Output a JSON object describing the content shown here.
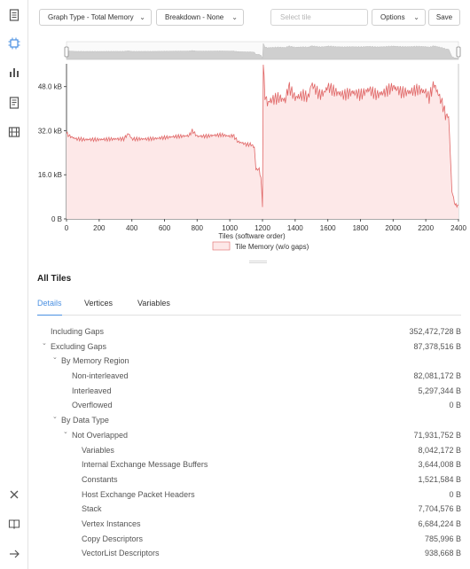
{
  "sidebar": {
    "icons": [
      "document-icon",
      "chip-icon",
      "bar-chart-icon",
      "list-document-icon",
      "film-icon",
      "close-icon",
      "book-icon",
      "arrow-right-icon"
    ]
  },
  "toolbar": {
    "graph_type_label": "Graph Type - Total Memory",
    "breakdown_label": "Breakdown - None",
    "search_placeholder": "Select tile",
    "options_label": "Options",
    "save_label": "Save"
  },
  "chart_data": {
    "type": "area",
    "title": "",
    "xlabel": "Tiles  (software order)",
    "ylabel": "",
    "xlim": [
      0,
      2400
    ],
    "ylim": [
      0,
      54
    ],
    "x_ticks": [
      "0",
      "200",
      "400",
      "600",
      "800",
      "1000",
      "1200",
      "1400",
      "1600",
      "1800",
      "2000",
      "2200",
      "2400"
    ],
    "y_ticks": [
      "0 B",
      "16.0 kB",
      "32.0 kB",
      "48.0 kB"
    ],
    "y_tick_values": [
      0,
      16,
      32,
      48
    ],
    "legend": [
      "Tile Memory (w/o gaps)"
    ],
    "legend_position": "bottom",
    "colors": {
      "line": "#e06666",
      "fill": "#fde8e8"
    },
    "series": [
      {
        "name": "Tile Memory (w/o gaps)",
        "x": [
          0,
          20,
          40,
          60,
          80,
          100,
          150,
          200,
          250,
          300,
          350,
          380,
          400,
          450,
          500,
          550,
          600,
          650,
          700,
          750,
          770,
          800,
          850,
          900,
          950,
          1000,
          1020,
          1050,
          1080,
          1100,
          1130,
          1150,
          1160,
          1180,
          1190,
          1200,
          1205,
          1215,
          1230,
          1250,
          1300,
          1340,
          1360,
          1400,
          1450,
          1480,
          1500,
          1550,
          1580,
          1600,
          1650,
          1700,
          1750,
          1800,
          1850,
          1900,
          1950,
          2000,
          2050,
          2100,
          2150,
          2200,
          2220,
          2250,
          2300,
          2320,
          2340,
          2360,
          2380,
          2400
        ],
        "values": [
          31,
          30,
          29.5,
          29,
          29,
          28.8,
          28.8,
          28.8,
          28.9,
          29,
          29,
          31,
          29,
          29,
          29,
          29.2,
          29.5,
          29.8,
          30,
          30.2,
          32,
          30,
          30,
          30.3,
          30.5,
          30,
          30.3,
          28,
          27.5,
          27,
          27,
          26,
          18,
          18,
          15,
          5,
          58,
          45,
          42,
          43,
          44,
          43,
          48,
          44,
          45,
          44,
          49,
          45,
          46,
          48,
          46,
          45,
          46,
          45,
          47,
          45,
          46,
          48,
          46,
          46,
          47,
          46,
          44,
          49,
          42,
          38,
          37,
          10,
          5,
          5
        ]
      }
    ]
  },
  "section": {
    "title": "All Tiles",
    "tabs": [
      "Details",
      "Vertices",
      "Variables"
    ]
  },
  "tree": [
    {
      "label": "Including Gaps",
      "value": "352,472,728 B",
      "caret": ""
    },
    {
      "label": "Excluding Gaps",
      "value": "87,378,516 B",
      "caret": "⌄"
    },
    {
      "label": "By Memory Region",
      "value": "",
      "caret": "⌄"
    },
    {
      "label": "Non-interleaved",
      "value": "82,081,172 B",
      "caret": ""
    },
    {
      "label": "Interleaved",
      "value": "5,297,344 B",
      "caret": ""
    },
    {
      "label": "Overflowed",
      "value": "0 B",
      "caret": ""
    },
    {
      "label": "By Data Type",
      "value": "",
      "caret": "⌄"
    },
    {
      "label": "Not Overlapped",
      "value": "71,931,752 B",
      "caret": "⌄"
    },
    {
      "label": "Variables",
      "value": "8,042,172 B",
      "caret": ""
    },
    {
      "label": "Internal Exchange Message Buffers",
      "value": "3,644,008 B",
      "caret": ""
    },
    {
      "label": "Constants",
      "value": "1,521,584 B",
      "caret": ""
    },
    {
      "label": "Host Exchange Packet Headers",
      "value": "0 B",
      "caret": ""
    },
    {
      "label": "Stack",
      "value": "7,704,576 B",
      "caret": ""
    },
    {
      "label": "Vertex Instances",
      "value": "6,684,224 B",
      "caret": ""
    },
    {
      "label": "Copy Descriptors",
      "value": "785,996 B",
      "caret": ""
    },
    {
      "label": "VectorList Descriptors",
      "value": "938,668 B",
      "caret": ""
    }
  ]
}
